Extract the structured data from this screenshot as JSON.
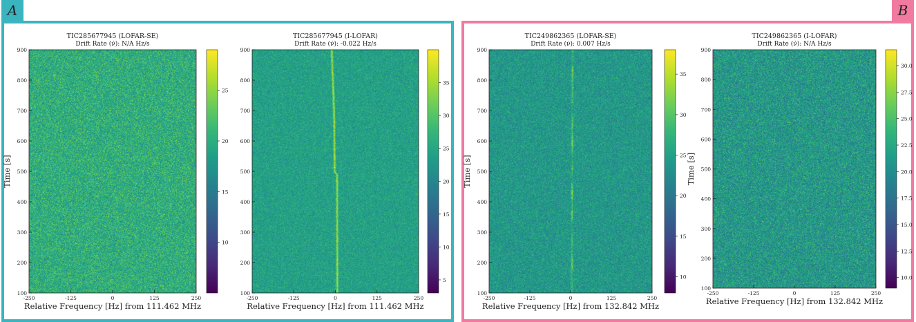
{
  "panels": [
    {
      "label": "A",
      "color": "#3ab5c0"
    },
    {
      "label": "B",
      "color": "#f07aa0"
    }
  ],
  "chart_data": [
    {
      "type": "heatmap",
      "title": "TIC285677945 (LOFAR-SE)",
      "subtitle": "Drift Rate (ν̇): N/A Hz/s",
      "xlabel": "Relative Frequency [Hz] from 111.462 MHz",
      "ylabel": "Time [s]",
      "xlim": [
        -250,
        250
      ],
      "ylim": [
        100,
        900
      ],
      "xticks": [
        -250,
        -125,
        0,
        125,
        250
      ],
      "yticks": [
        100,
        200,
        300,
        400,
        500,
        600,
        700,
        800,
        900
      ],
      "colorbar": {
        "min": 5,
        "max": 29,
        "ticks": [
          "10",
          "15",
          "20",
          "25"
        ]
      },
      "background_level": 20,
      "signal": null
    },
    {
      "type": "heatmap",
      "title": "TIC285677945 (I-LOFAR)",
      "subtitle": "Drift Rate (ν̇): -0.022 Hz/s",
      "xlabel": "Relative Frequency [Hz] from 111.462 MHz",
      "ylabel": "",
      "xlim": [
        -250,
        250
      ],
      "ylim": [
        100,
        900
      ],
      "xticks": [
        -250,
        -125,
        0,
        125,
        250
      ],
      "yticks": [
        100,
        200,
        300,
        400,
        500,
        600,
        700,
        800,
        900
      ],
      "colorbar": {
        "min": 3,
        "max": 40,
        "ticks": [
          "5",
          "10",
          "15",
          "20",
          "25",
          "30",
          "35"
        ]
      },
      "background_level": 24,
      "signal": {
        "points": [
          [
            -12,
            900
          ],
          [
            -5,
            700
          ],
          [
            -3,
            500
          ],
          [
            4,
            490
          ],
          [
            5,
            100
          ]
        ],
        "level": 36,
        "continuous": true
      }
    },
    {
      "type": "heatmap",
      "title": "TIC249862365 (LOFAR-SE)",
      "subtitle": "Drift Rate (ν̇): 0.007 Hz/s",
      "xlabel": "Relative Frequency [Hz] from 132.842 MHz",
      "ylabel": "Time [s]",
      "xlim": [
        -250,
        250
      ],
      "ylim": [
        100,
        900
      ],
      "xticks": [
        -250,
        -125,
        0,
        125,
        250
      ],
      "yticks": [
        100,
        200,
        300,
        400,
        500,
        600,
        700,
        800,
        900
      ],
      "colorbar": {
        "min": 8,
        "max": 38,
        "ticks": [
          "10",
          "15",
          "20",
          "25",
          "30",
          "35"
        ]
      },
      "background_level": 24,
      "signal": {
        "points": [
          [
            5,
            900
          ],
          [
            3,
            100
          ]
        ],
        "level": 33,
        "continuous": false
      }
    },
    {
      "type": "heatmap",
      "title": "TIC249862365 (I-LOFAR)",
      "subtitle": "Drift Rate (ν̇): N/A Hz/s",
      "xlabel": "Relative Frequency [Hz] from 132.842 MHz",
      "ylabel": "Time [s]",
      "xlim": [
        -250,
        250
      ],
      "ylim": [
        100,
        900
      ],
      "xticks": [
        -250,
        -125,
        0,
        125,
        250
      ],
      "yticks": [
        100,
        200,
        300,
        400,
        500,
        600,
        700,
        800,
        900
      ],
      "colorbar": {
        "min": 9,
        "max": 31.5,
        "ticks": [
          "10.0",
          "12.5",
          "15.0",
          "17.5",
          "20.0",
          "22.5",
          "25.0",
          "27.5",
          "30.0"
        ]
      },
      "background_level": 21,
      "signal": null
    }
  ]
}
